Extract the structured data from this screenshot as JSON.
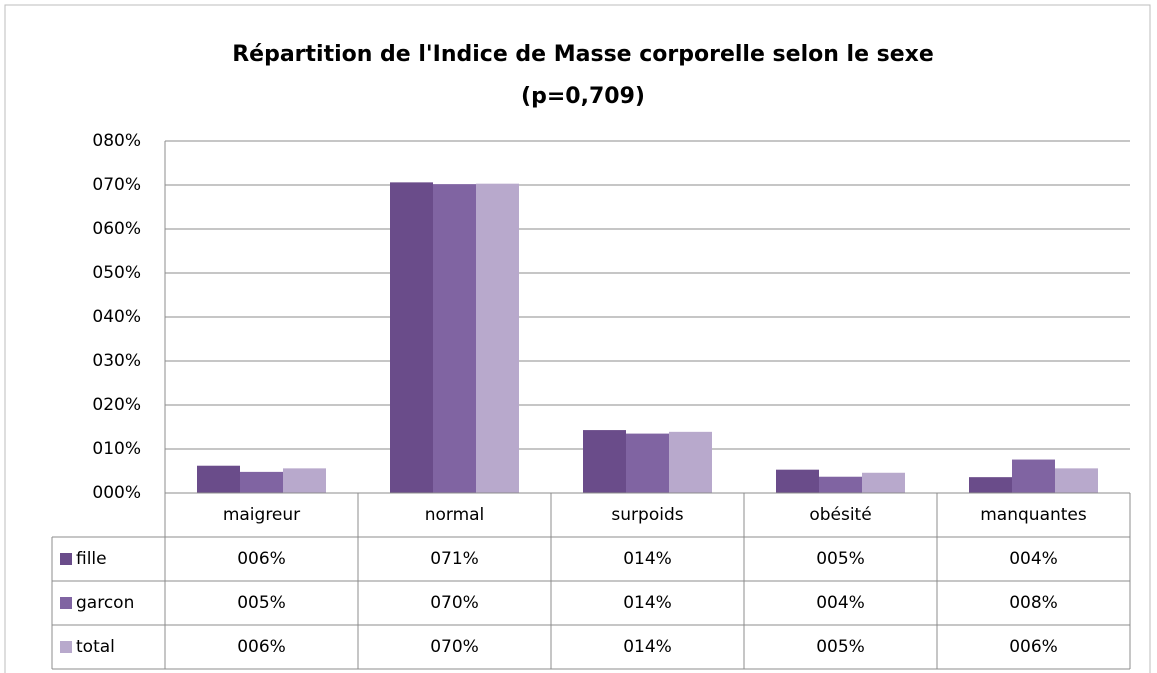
{
  "chart_data": {
    "type": "bar",
    "title": [
      "Répartition  de l'Indice de Masse corporelle selon le sexe",
      "(p=0,709)"
    ],
    "categories": [
      "maigreur",
      "normal",
      "surpoids",
      "obésité",
      "manquantes"
    ],
    "series": [
      {
        "name": "fille",
        "color": "#6a4c8a",
        "values": [
          6.2,
          70.6,
          14.3,
          5.3,
          3.6
        ],
        "value_labels": [
          "006%",
          "071%",
          "014%",
          "005%",
          "004%"
        ]
      },
      {
        "name": "garcon",
        "color": "#8064a2",
        "values": [
          4.8,
          70.2,
          13.5,
          3.7,
          7.6
        ],
        "value_labels": [
          "005%",
          "070%",
          "014%",
          "004%",
          "008%"
        ]
      },
      {
        "name": "total",
        "color": "#b8a9cc",
        "values": [
          5.6,
          70.3,
          13.9,
          4.6,
          5.6
        ],
        "value_labels": [
          "006%",
          "070%",
          "014%",
          "005%",
          "006%"
        ]
      }
    ],
    "ylim": [
      0,
      80
    ],
    "yticks": [
      {
        "value": 0,
        "label": "000%"
      },
      {
        "value": 10,
        "label": "010%"
      },
      {
        "value": 20,
        "label": "020%"
      },
      {
        "value": 30,
        "label": "030%"
      },
      {
        "value": 40,
        "label": "040%"
      },
      {
        "value": 50,
        "label": "050%"
      },
      {
        "value": 60,
        "label": "060%"
      },
      {
        "value": 70,
        "label": "070%"
      },
      {
        "value": 80,
        "label": "080%"
      }
    ],
    "grid": true
  }
}
